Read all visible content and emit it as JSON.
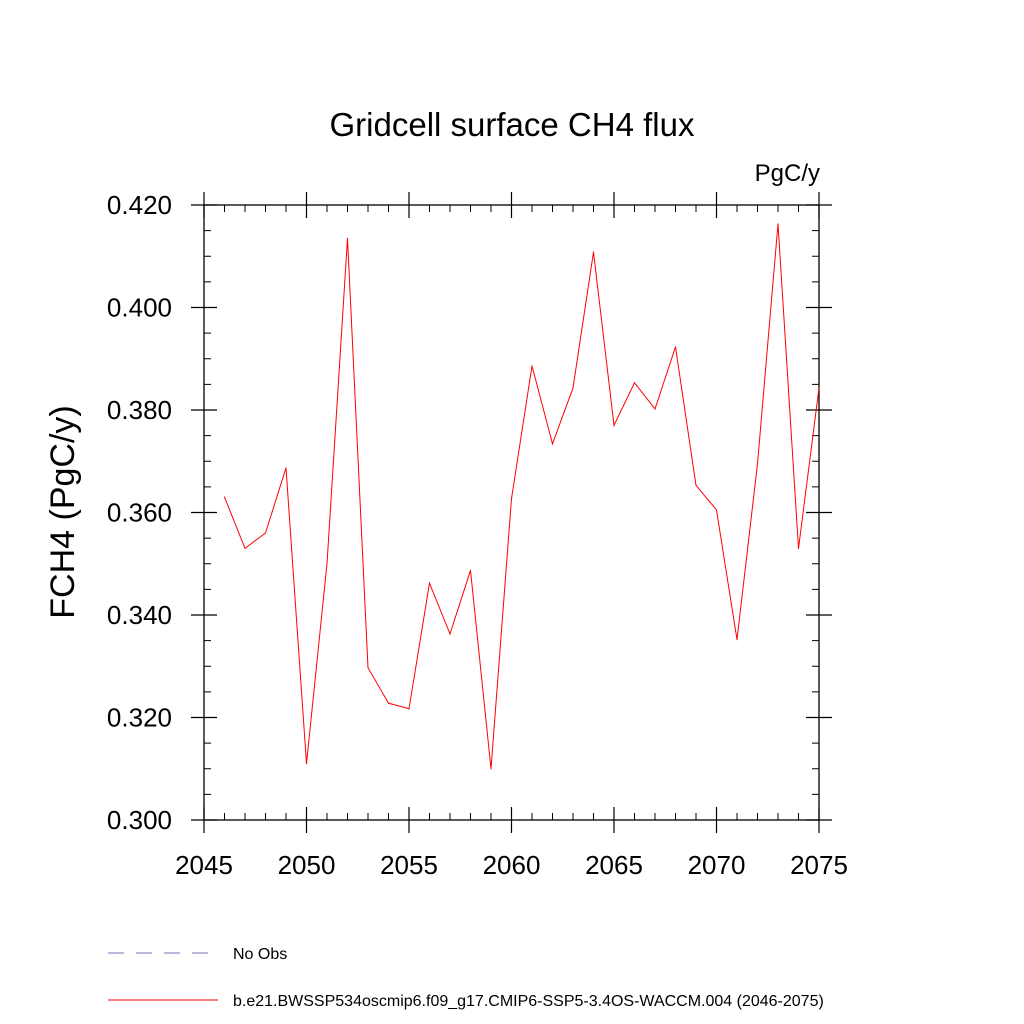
{
  "chart_data": {
    "type": "line",
    "title": "Gridcell surface CH4 flux",
    "units": "PgC/y",
    "xlabel": "",
    "ylabel": "FCH4  (PgC/y)",
    "xlim": [
      2045,
      2075
    ],
    "ylim": [
      0.3,
      0.42
    ],
    "x_ticks": [
      "2045",
      "2050",
      "2055",
      "2060",
      "2065",
      "2070",
      "2075"
    ],
    "y_ticks": [
      "0.300",
      "0.320",
      "0.340",
      "0.360",
      "0.380",
      "0.400",
      "0.420"
    ],
    "x_minor_step": 1,
    "y_minor_step": 0.005,
    "grid": false,
    "series": [
      {
        "name": "b.e21.BWSSP534oscmip6.f09_g17.CMIP6-SSP5-3.4OS-WACCM.004 (2046-2075)",
        "color": "#ff0000",
        "style": "solid",
        "x": [
          2046,
          2047,
          2048,
          2049,
          2050,
          2051,
          2052,
          2053,
          2054,
          2055,
          2056,
          2057,
          2058,
          2059,
          2060,
          2061,
          2062,
          2063,
          2064,
          2065,
          2066,
          2067,
          2068,
          2069,
          2070,
          2071,
          2072,
          2073,
          2074,
          2075
        ],
        "values": [
          0.363,
          0.353,
          0.356,
          0.3687,
          0.311,
          0.35,
          0.4135,
          0.3297,
          0.3228,
          0.3217,
          0.3462,
          0.3363,
          0.3487,
          0.31,
          0.3627,
          0.3886,
          0.3734,
          0.3843,
          0.4108,
          0.377,
          0.3853,
          0.3802,
          0.3923,
          0.3653,
          0.3605,
          0.3352,
          0.3695,
          0.4163,
          0.353,
          0.3843
        ]
      }
    ],
    "legend": {
      "placement": "bottom-left",
      "entries": [
        {
          "label": "No Obs",
          "color": "#7b6fb5",
          "style": "dashed"
        },
        {
          "label": "b.e21.BWSSP534oscmip6.f09_g17.CMIP6-SSP5-3.4OS-WACCM.004 (2046-2075)",
          "color": "#ff0000",
          "style": "solid"
        }
      ]
    }
  }
}
